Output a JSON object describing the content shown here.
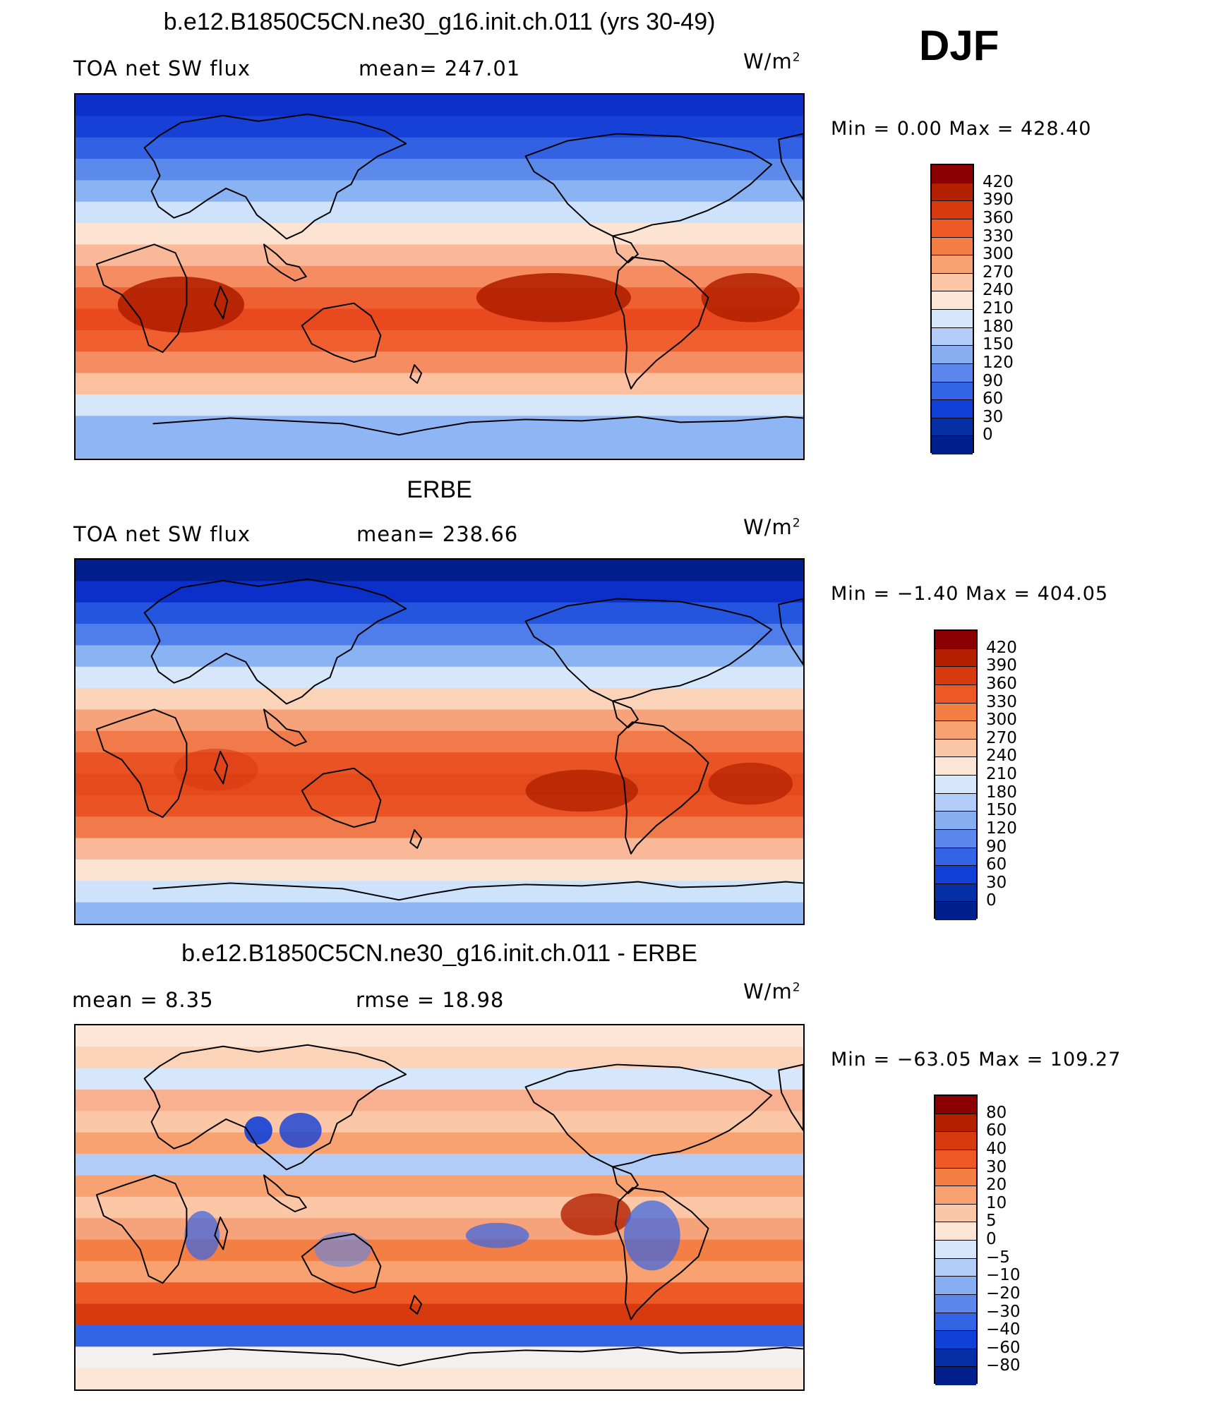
{
  "season": "DJF",
  "units_prefix": "W/m",
  "units_power": "2",
  "panels": [
    {
      "title": "b.e12.B1850C5CN.ne30_g16.init.ch.011 (yrs 30-49)",
      "left_label": "TOA net SW flux",
      "mid_label": "mean=  247.01",
      "minmax": "Min =    0.00 Max = 428.40",
      "colorbar": {
        "levels": [
          "420",
          "390",
          "360",
          "330",
          "300",
          "270",
          "240",
          "210",
          "180",
          "150",
          "120",
          "90",
          "60",
          "30",
          "0"
        ],
        "colors": [
          "#8b0000",
          "#b22000",
          "#d83a10",
          "#ee5a25",
          "#f47f45",
          "#f8a272",
          "#fbc7a6",
          "#fde6d6",
          "#d6e7fb",
          "#b1cdf7",
          "#87aef1",
          "#5c87ec",
          "#3464e6",
          "#1140d8",
          "#062ea5",
          "#001e8c"
        ]
      },
      "map": {
        "bands": [
          "#0b2fc8",
          "#1740d6",
          "#3262e3",
          "#5c8aeb",
          "#8ab3f3",
          "#cfe2fb",
          "#fde4d2",
          "#f9b999",
          "#f58c62",
          "#ee6032",
          "#e8491e",
          "#ef5f30",
          "#f58c62",
          "#fbc0a0",
          "#d5e6fb",
          "#8fb6f4",
          "#8fb6f4"
        ]
      }
    },
    {
      "title": "ERBE",
      "left_label": "TOA net SW flux",
      "mid_label": "mean=  238.66",
      "minmax": "Min =  −1.40 Max = 404.05",
      "colorbar": {
        "levels": [
          "420",
          "390",
          "360",
          "330",
          "300",
          "270",
          "240",
          "210",
          "180",
          "150",
          "120",
          "90",
          "60",
          "30",
          "0"
        ],
        "colors": [
          "#8b0000",
          "#b22000",
          "#d83a10",
          "#ee5a25",
          "#f47f45",
          "#f8a272",
          "#fbc7a6",
          "#fde6d6",
          "#d6e7fb",
          "#b1cdf7",
          "#87aef1",
          "#5c87ec",
          "#3464e6",
          "#1140d8",
          "#062ea5",
          "#001e8c"
        ]
      },
      "map": {
        "bands": [
          "#001e8c",
          "#0b2fc8",
          "#2455de",
          "#4f7de9",
          "#8ab3f3",
          "#d6e7fb",
          "#fbd3b8",
          "#f6a27a",
          "#f17a4a",
          "#ea5424",
          "#e44a1c",
          "#ea5424",
          "#f17a4a",
          "#f9b999",
          "#fde4d2",
          "#cfe2fb",
          "#8fb6f4"
        ]
      }
    },
    {
      "title": "b.e12.B1850C5CN.ne30_g16.init.ch.011 - ERBE",
      "left_label": "mean =     8.35",
      "mid_label": "rmse =    18.98",
      "minmax": "Min = −63.05 Max = 109.27",
      "colorbar": {
        "levels": [
          "80",
          "60",
          "40",
          "30",
          "20",
          "10",
          "5",
          "0",
          "−5",
          "−10",
          "−20",
          "−30",
          "−40",
          "−60",
          "−80"
        ],
        "colors": [
          "#8b0000",
          "#b22000",
          "#d83a10",
          "#ee5a25",
          "#f47f45",
          "#f8a272",
          "#fbc7a6",
          "#fde6d6",
          "#d6e7fb",
          "#b1cdf7",
          "#87aef1",
          "#5c87ec",
          "#3464e6",
          "#1140d8",
          "#062ea5",
          "#001e8c"
        ]
      },
      "map": {
        "bands": [
          "#fde6d6",
          "#fbd3b8",
          "#d6e7fb",
          "#f8b090",
          "#fbc7a6",
          "#f8a272",
          "#b1cdf7",
          "#f8a272",
          "#fbc7a6",
          "#f6a27a",
          "#f47f45",
          "#f8a272",
          "#ee5a25",
          "#d83a10",
          "#3464e6",
          "#f4f0f0",
          "#fde6d6"
        ]
      }
    }
  ]
}
